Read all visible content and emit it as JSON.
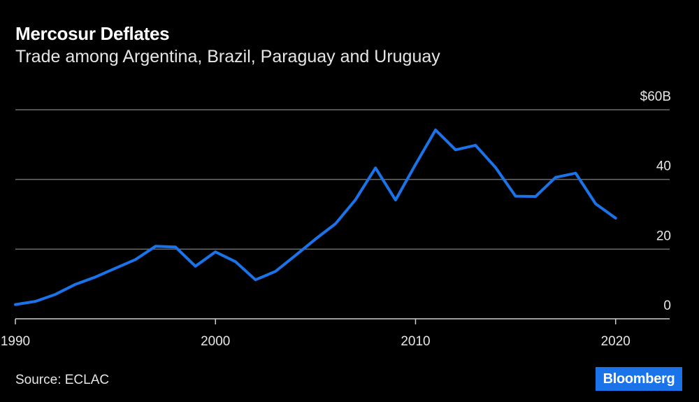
{
  "header": {
    "title": "Mercosur Deflates",
    "subtitle": "Trade among Argentina, Brazil, Paraguay and Uruguay"
  },
  "footer": {
    "source": "Source: ECLAC",
    "brand": "Bloomberg"
  },
  "colors": {
    "line": "#1a73e8",
    "grid": "#6e6e6e",
    "axis": "#cfcfcf",
    "brand_bg": "#1a73e8"
  },
  "chart_data": {
    "type": "line",
    "title": "Mercosur Deflates",
    "subtitle": "Trade among Argentina, Brazil, Paraguay and Uruguay",
    "xlabel": "",
    "ylabel": "",
    "xlim": [
      1990,
      2022.7
    ],
    "ylim": [
      0,
      60
    ],
    "x_ticks": [
      1990,
      2000,
      2010,
      2020
    ],
    "x_tick_labels": [
      "1990",
      "2000",
      "2010",
      "2020"
    ],
    "y_ticks": [
      0,
      20,
      40,
      60
    ],
    "y_tick_labels": [
      "0",
      "20",
      "40",
      "$60B"
    ],
    "grid": true,
    "series": [
      {
        "x": [
          1990,
          1991,
          1992,
          1993,
          1994,
          1995,
          1996,
          1997,
          1998,
          1999,
          2000,
          2001,
          2002,
          2003,
          2004,
          2005,
          2006,
          2007,
          2008,
          2009,
          2010,
          2011,
          2012,
          2013,
          2014,
          2015,
          2016,
          2017,
          2018,
          2019,
          2020
        ],
        "y": [
          4.1,
          5.0,
          7.0,
          9.9,
          12.0,
          14.5,
          17.0,
          20.8,
          20.6,
          15.1,
          19.2,
          16.4,
          11.2,
          13.6,
          18.2,
          22.9,
          27.3,
          34.2,
          43.3,
          34.1,
          44.3,
          54.2,
          48.5,
          49.8,
          43.4,
          35.2,
          35.1,
          40.6,
          41.8,
          33.0,
          28.9
        ]
      }
    ]
  }
}
